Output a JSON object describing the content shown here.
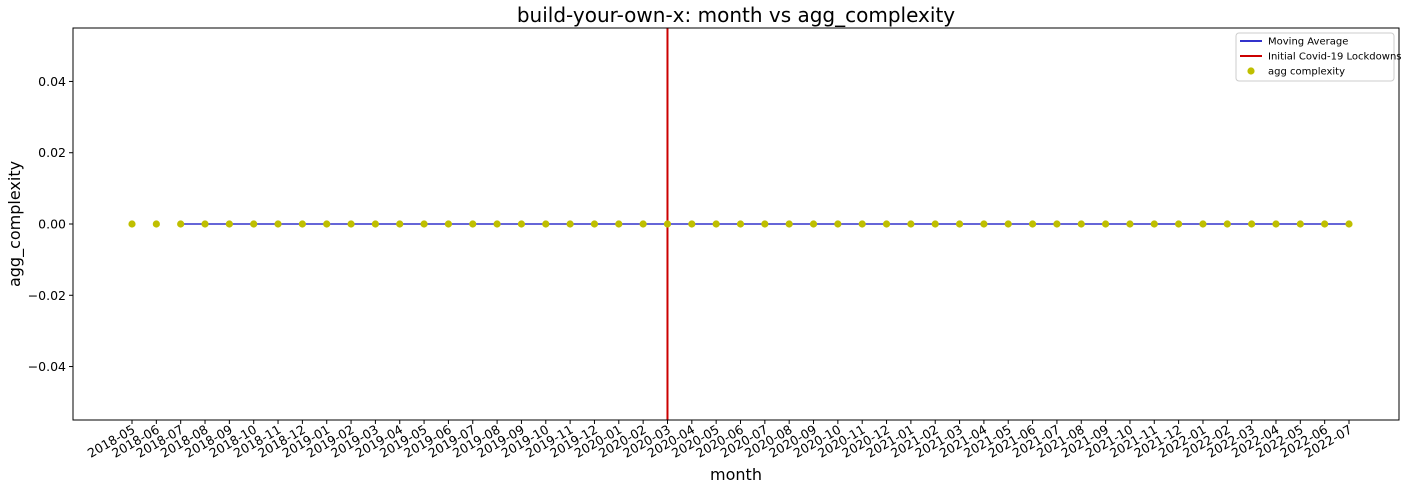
{
  "chart_data": {
    "type": "scatter",
    "title": "build-your-own-x: month vs agg_complexity",
    "xlabel": "month",
    "ylabel": "agg_complexity",
    "categories": [
      "2018-05",
      "2018-06",
      "2018-07",
      "2018-08",
      "2018-09",
      "2018-10",
      "2018-11",
      "2018-12",
      "2019-01",
      "2019-02",
      "2019-03",
      "2019-04",
      "2019-05",
      "2019-06",
      "2019-07",
      "2019-08",
      "2019-09",
      "2019-10",
      "2019-11",
      "2019-12",
      "2020-01",
      "2020-02",
      "2020-03",
      "2020-04",
      "2020-05",
      "2020-06",
      "2020-07",
      "2020-08",
      "2020-09",
      "2020-10",
      "2020-11",
      "2020-12",
      "2021-01",
      "2021-02",
      "2021-03",
      "2021-04",
      "2021-05",
      "2021-06",
      "2021-07",
      "2021-08",
      "2021-09",
      "2021-10",
      "2021-11",
      "2021-12",
      "2022-01",
      "2022-02",
      "2022-03",
      "2022-04",
      "2022-05",
      "2022-06",
      "2022-07"
    ],
    "series": [
      {
        "name": "agg complexity",
        "kind": "scatter",
        "color": "#bfbf00",
        "values": [
          0,
          0,
          0,
          0,
          0,
          0,
          0,
          0,
          0,
          0,
          0,
          0,
          0,
          0,
          0,
          0,
          0,
          0,
          0,
          0,
          0,
          0,
          0,
          0,
          0,
          0,
          0,
          0,
          0,
          0,
          0,
          0,
          0,
          0,
          0,
          0,
          0,
          0,
          0,
          0,
          0,
          0,
          0,
          0,
          0,
          0,
          0,
          0,
          0,
          0,
          0
        ]
      },
      {
        "name": "Moving Average",
        "kind": "line",
        "color": "#3333cc",
        "start_category": "2018-07",
        "end_category": "2022-07",
        "value": 0
      },
      {
        "name": "Initial Covid-19 Lockdowns",
        "kind": "vline",
        "color": "#cc0000",
        "x_category": "2020-03"
      }
    ],
    "yticks": [
      -0.04,
      -0.02,
      0.0,
      0.02,
      0.04
    ],
    "ytick_labels": [
      "−0.04",
      "−0.02",
      "0.00",
      "0.02",
      "0.04"
    ],
    "ylim": [
      -0.055,
      0.055
    ],
    "grid": false,
    "legend_position": "top-right"
  }
}
